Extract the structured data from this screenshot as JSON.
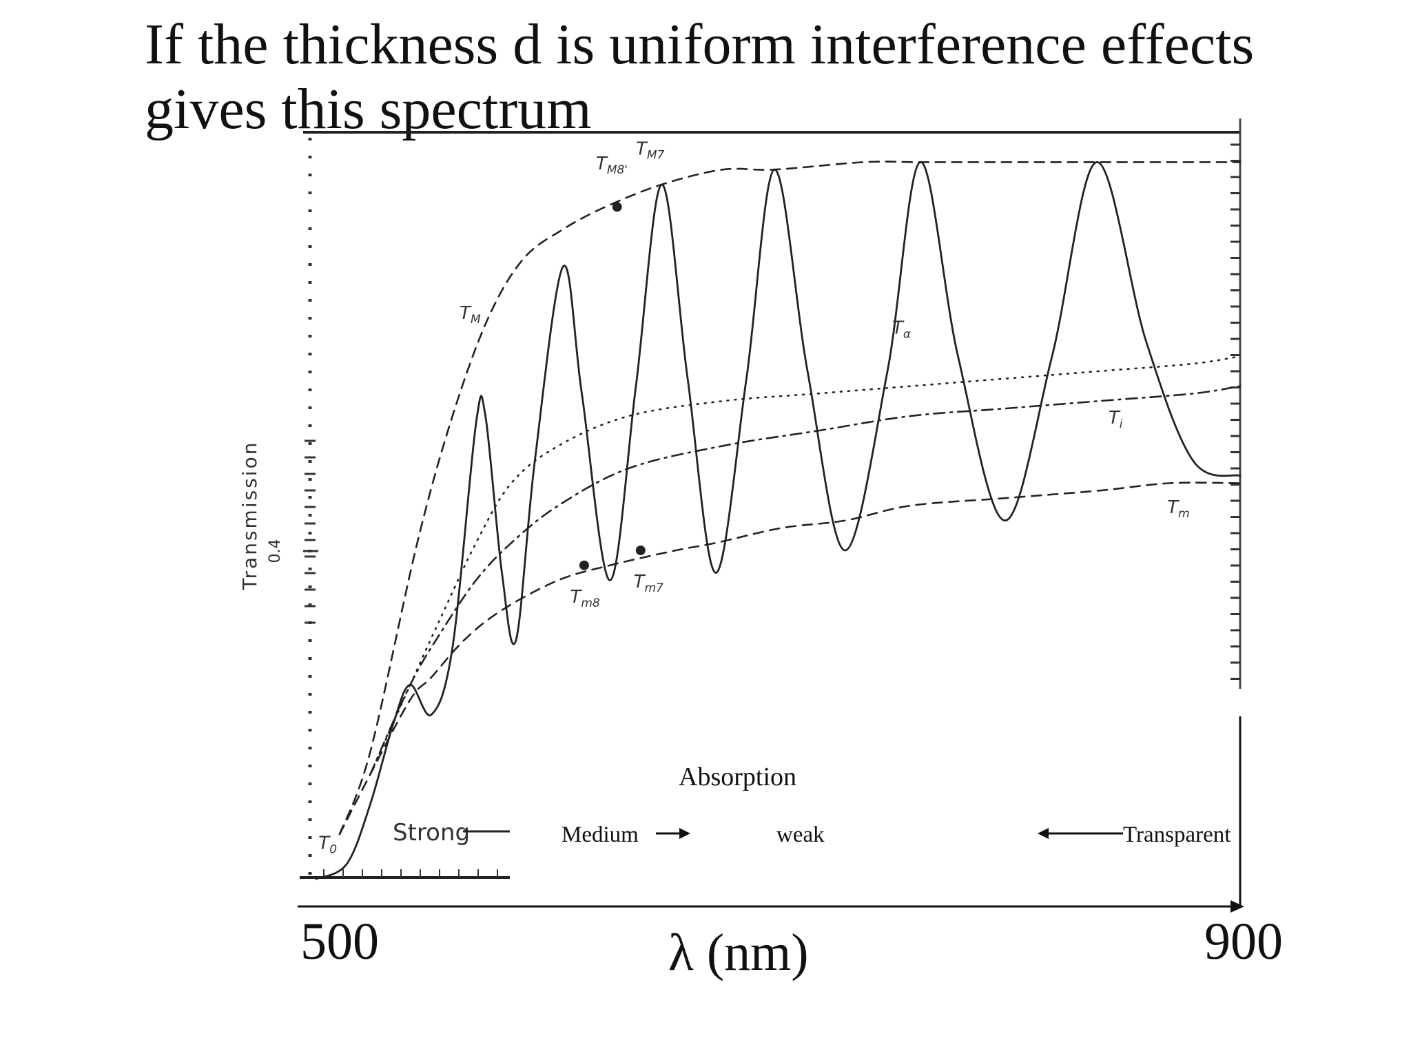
{
  "slide": {
    "title": "If the thickness d is uniform interference effects gives this spectrum"
  },
  "chart_data": {
    "type": "line",
    "xlabel": "λ (nm)",
    "ylabel": "Transmission",
    "xlim": [
      500,
      900
    ],
    "ylim": [
      0,
      1
    ],
    "x_ticks": [
      "500",
      "900"
    ],
    "y_ticks": [
      "0.4"
    ],
    "series": [
      {
        "name": "T",
        "style": "solid",
        "points": [
          [
            507,
            0.0
          ],
          [
            520,
            0.02
          ],
          [
            530,
            0.1
          ],
          [
            540,
            0.21
          ],
          [
            547,
            0.26
          ],
          [
            556,
            0.22
          ],
          [
            565,
            0.31
          ],
          [
            575,
            0.61
          ],
          [
            579,
            0.62
          ],
          [
            586,
            0.41
          ],
          [
            592,
            0.32
          ],
          [
            600,
            0.56
          ],
          [
            612,
            0.82
          ],
          [
            620,
            0.65
          ],
          [
            632,
            0.4
          ],
          [
            643,
            0.66
          ],
          [
            654,
            0.93
          ],
          [
            665,
            0.67
          ],
          [
            677,
            0.41
          ],
          [
            690,
            0.67
          ],
          [
            702,
            0.95
          ],
          [
            716,
            0.68
          ],
          [
            732,
            0.44
          ],
          [
            750,
            0.68
          ],
          [
            764,
            0.96
          ],
          [
            780,
            0.7
          ],
          [
            800,
            0.48
          ],
          [
            820,
            0.7
          ],
          [
            839,
            0.96
          ],
          [
            860,
            0.72
          ],
          [
            880,
            0.56
          ],
          [
            900,
            0.54
          ]
        ]
      },
      {
        "name": "T_M",
        "style": "dashed",
        "points": [
          [
            517,
            0.06
          ],
          [
            530,
            0.17
          ],
          [
            550,
            0.45
          ],
          [
            565,
            0.62
          ],
          [
            580,
            0.75
          ],
          [
            595,
            0.83
          ],
          [
            612,
            0.87
          ],
          [
            630,
            0.9
          ],
          [
            654,
            0.93
          ],
          [
            680,
            0.95
          ],
          [
            702,
            0.95
          ],
          [
            740,
            0.96
          ],
          [
            764,
            0.96
          ],
          [
            800,
            0.96
          ],
          [
            839,
            0.96
          ],
          [
            900,
            0.96
          ]
        ]
      },
      {
        "name": "T_m",
        "style": "dashed",
        "points": [
          [
            517,
            0.06
          ],
          [
            530,
            0.14
          ],
          [
            547,
            0.24
          ],
          [
            556,
            0.27
          ],
          [
            570,
            0.32
          ],
          [
            586,
            0.36
          ],
          [
            610,
            0.4
          ],
          [
            632,
            0.42
          ],
          [
            660,
            0.44
          ],
          [
            677,
            0.45
          ],
          [
            705,
            0.47
          ],
          [
            732,
            0.48
          ],
          [
            760,
            0.5
          ],
          [
            800,
            0.51
          ],
          [
            840,
            0.52
          ],
          [
            870,
            0.53
          ],
          [
            900,
            0.53
          ]
        ]
      },
      {
        "name": "T_α",
        "style": "dotted",
        "points": [
          [
            530,
            0.14
          ],
          [
            547,
            0.26
          ],
          [
            560,
            0.35
          ],
          [
            575,
            0.45
          ],
          [
            590,
            0.53
          ],
          [
            610,
            0.58
          ],
          [
            640,
            0.62
          ],
          [
            680,
            0.64
          ],
          [
            720,
            0.65
          ],
          [
            760,
            0.66
          ],
          [
            800,
            0.67
          ],
          [
            840,
            0.68
          ],
          [
            880,
            0.69
          ],
          [
            900,
            0.7
          ]
        ]
      },
      {
        "name": "T_i",
        "style": "dashdot",
        "points": [
          [
            530,
            0.14
          ],
          [
            547,
            0.26
          ],
          [
            560,
            0.33
          ],
          [
            575,
            0.4
          ],
          [
            590,
            0.45
          ],
          [
            610,
            0.5
          ],
          [
            640,
            0.55
          ],
          [
            680,
            0.58
          ],
          [
            720,
            0.6
          ],
          [
            760,
            0.62
          ],
          [
            800,
            0.63
          ],
          [
            840,
            0.64
          ],
          [
            880,
            0.65
          ],
          [
            900,
            0.66
          ]
        ]
      }
    ],
    "markers": [
      {
        "label": "T_M8'",
        "x": 635,
        "y": 0.9
      },
      {
        "label": "T_m8",
        "x": 621,
        "y": 0.42
      },
      {
        "label": "T_m7",
        "x": 645,
        "y": 0.44
      }
    ],
    "curve_labels": [
      {
        "label": "T_M",
        "x": 568,
        "y": 0.75
      },
      {
        "label": "T_M7",
        "x": 643,
        "y": 0.97
      },
      {
        "label": "T_M8'",
        "x": 626,
        "y": 0.95
      },
      {
        "label": "T_α",
        "x": 752,
        "y": 0.73
      },
      {
        "label": "T_i",
        "x": 844,
        "y": 0.61
      },
      {
        "label": "T_m",
        "x": 869,
        "y": 0.49
      },
      {
        "label": "T_m8",
        "x": 615,
        "y": 0.37
      },
      {
        "label": "T_m7",
        "x": 642,
        "y": 0.39
      },
      {
        "label": "T_0",
        "x": 508,
        "y": 0.04
      }
    ],
    "absorption": {
      "title": "Absorption",
      "regions": [
        "Strong",
        "Medium",
        "weak",
        "Transparent"
      ]
    }
  }
}
